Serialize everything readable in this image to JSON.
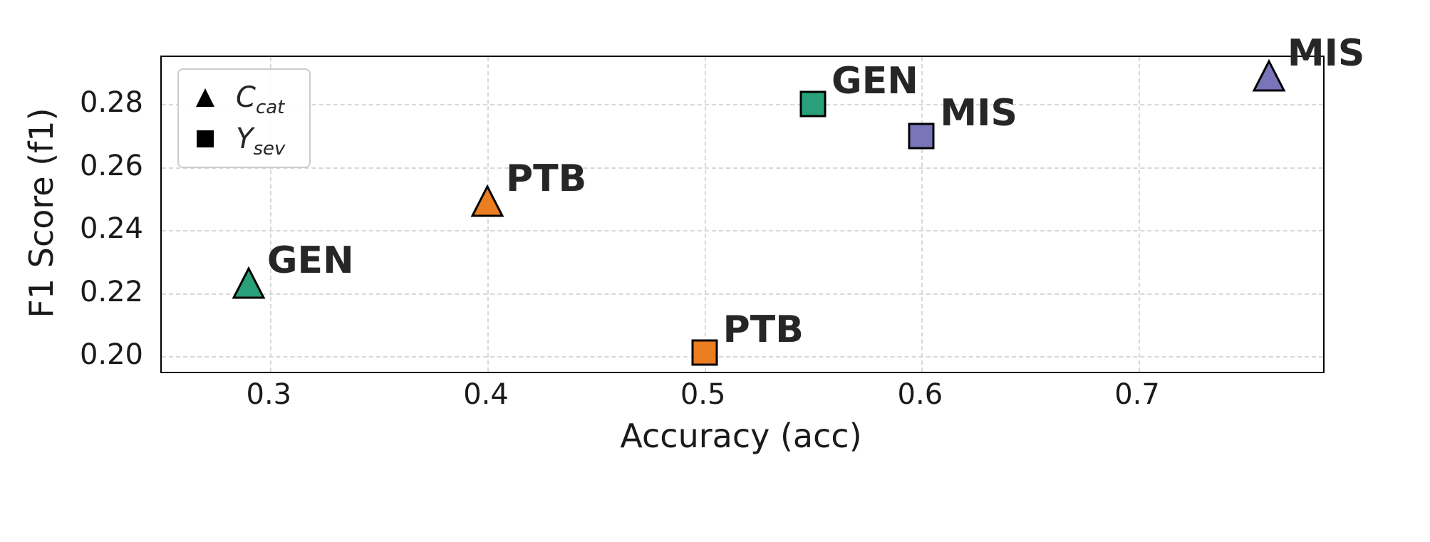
{
  "figure": {
    "background": "#ffffff",
    "spine_color": "#000000",
    "grid_color": "#d8d8d8",
    "text_color": "#1a1a1a",
    "annotation_color": "#262626"
  },
  "chart_data": {
    "type": "scatter",
    "title": "",
    "xlabel": "Accuracy (acc)",
    "ylabel": "F1 Score (f1)",
    "xlim": [
      0.25,
      0.785
    ],
    "ylim": [
      0.195,
      0.295
    ],
    "grid": "dashed",
    "legend_position": "upper-left",
    "xticks": [
      {
        "v": 0.3,
        "label": "0.3"
      },
      {
        "v": 0.4,
        "label": "0.4"
      },
      {
        "v": 0.5,
        "label": "0.5"
      },
      {
        "v": 0.6,
        "label": "0.6"
      },
      {
        "v": 0.7,
        "label": "0.7"
      }
    ],
    "yticks": [
      {
        "v": 0.2,
        "label": "0.20"
      },
      {
        "v": 0.22,
        "label": "0.22"
      },
      {
        "v": 0.24,
        "label": "0.24"
      },
      {
        "v": 0.26,
        "label": "0.26"
      },
      {
        "v": 0.28,
        "label": "0.28"
      }
    ],
    "legend": {
      "entries": [
        {
          "marker": "triangle",
          "main": "C",
          "sub": "cat"
        },
        {
          "marker": "square",
          "main": "Y",
          "sub": "sev"
        }
      ]
    },
    "series": [
      {
        "name": "C_cat",
        "marker": "triangle",
        "points": [
          {
            "label": "GEN",
            "x": 0.29,
            "y": 0.223,
            "color": "#2aa07a"
          },
          {
            "label": "PTB",
            "x": 0.4,
            "y": 0.249,
            "color": "#ea7d20"
          },
          {
            "label": "MIS",
            "x": 0.76,
            "y": 0.289,
            "color": "#7a75b8"
          }
        ]
      },
      {
        "name": "Y_sev",
        "marker": "square",
        "points": [
          {
            "label": "PTB",
            "x": 0.5,
            "y": 0.201,
            "color": "#ea7d20"
          },
          {
            "label": "GEN",
            "x": 0.55,
            "y": 0.28,
            "color": "#2aa07a"
          },
          {
            "label": "MIS",
            "x": 0.6,
            "y": 0.27,
            "color": "#7a75b8"
          }
        ]
      }
    ]
  }
}
